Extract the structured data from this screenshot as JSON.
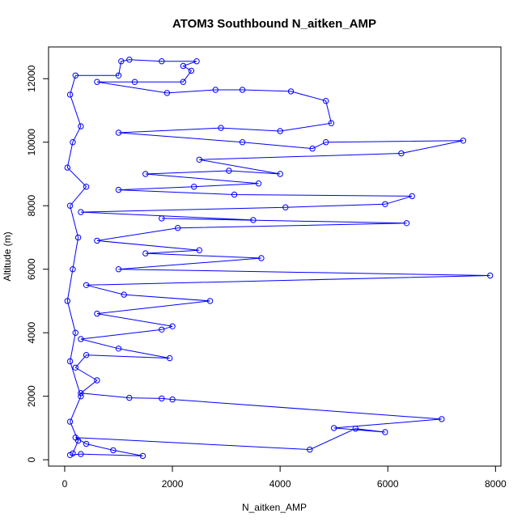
{
  "chart_data": {
    "type": "scatter",
    "title": "ATOM3 Southbound N_aitken_AMP",
    "xlabel": "N_aitken_AMP",
    "ylabel": "Altitude (m)",
    "xlim": [
      -300,
      8100
    ],
    "ylim": [
      -200,
      13000
    ],
    "xticks": [
      0,
      2000,
      4000,
      6000,
      8000
    ],
    "yticks": [
      0,
      2000,
      4000,
      6000,
      8000,
      10000,
      12000
    ],
    "grid": false,
    "legend": "none",
    "series": [
      {
        "color": "#0000ff",
        "marker": "open-circle",
        "line": true,
        "points": [
          [
            100,
            150
          ],
          [
            300,
            180
          ],
          [
            1450,
            120
          ],
          [
            900,
            300
          ],
          [
            400,
            500
          ],
          [
            200,
            700
          ],
          [
            4550,
            320
          ],
          [
            5400,
            980
          ],
          [
            5950,
            870
          ],
          [
            5000,
            1000
          ],
          [
            7000,
            1280
          ],
          [
            2000,
            1900
          ],
          [
            1800,
            1930
          ],
          [
            1200,
            1950
          ],
          [
            300,
            2100
          ],
          [
            600,
            2500
          ],
          [
            200,
            2900
          ],
          [
            400,
            3300
          ],
          [
            1950,
            3200
          ],
          [
            1000,
            3500
          ],
          [
            300,
            3800
          ],
          [
            1800,
            4100
          ],
          [
            2000,
            4200
          ],
          [
            600,
            4600
          ],
          [
            2700,
            5000
          ],
          [
            1100,
            5200
          ],
          [
            400,
            5500
          ],
          [
            7900,
            5800
          ],
          [
            1000,
            6000
          ],
          [
            3650,
            6350
          ],
          [
            1500,
            6500
          ],
          [
            2500,
            6600
          ],
          [
            600,
            6900
          ],
          [
            2100,
            7300
          ],
          [
            6350,
            7450
          ],
          [
            1800,
            7600
          ],
          [
            3500,
            7550
          ],
          [
            300,
            7800
          ],
          [
            4100,
            7950
          ],
          [
            5950,
            8050
          ],
          [
            6450,
            8300
          ],
          [
            3150,
            8350
          ],
          [
            1000,
            8500
          ],
          [
            2400,
            8600
          ],
          [
            3600,
            8700
          ],
          [
            1500,
            9000
          ],
          [
            3050,
            9100
          ],
          [
            4000,
            9000
          ],
          [
            2500,
            9450
          ],
          [
            6250,
            9650
          ],
          [
            7400,
            10050
          ],
          [
            4850,
            10000
          ],
          [
            4600,
            9800
          ],
          [
            3300,
            10000
          ],
          [
            1000,
            10300
          ],
          [
            2900,
            10450
          ],
          [
            4000,
            10350
          ],
          [
            4950,
            10600
          ],
          [
            4850,
            11300
          ],
          [
            4200,
            11600
          ],
          [
            3300,
            11650
          ],
          [
            2800,
            11650
          ],
          [
            1900,
            11550
          ],
          [
            600,
            11900
          ],
          [
            1300,
            11900
          ],
          [
            2200,
            11900
          ],
          [
            2350,
            12250
          ],
          [
            2200,
            12400
          ],
          [
            2450,
            12550
          ],
          [
            1800,
            12550
          ],
          [
            1200,
            12600
          ],
          [
            1050,
            12550
          ],
          [
            1000,
            12100
          ],
          [
            200,
            12100
          ],
          [
            100,
            11500
          ],
          [
            300,
            10500
          ],
          [
            150,
            10000
          ],
          [
            50,
            9200
          ],
          [
            400,
            8600
          ],
          [
            100,
            8000
          ],
          [
            250,
            7000
          ],
          [
            150,
            6000
          ],
          [
            50,
            5000
          ],
          [
            200,
            4000
          ],
          [
            100,
            3100
          ],
          [
            300,
            2000
          ],
          [
            100,
            1200
          ],
          [
            250,
            600
          ],
          [
            150,
            200
          ]
        ]
      }
    ]
  }
}
